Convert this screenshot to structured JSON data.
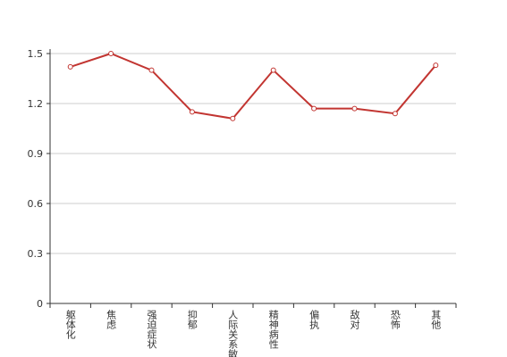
{
  "chart_data": {
    "type": "line",
    "categories": [
      "躯体化",
      "焦虑",
      "强迫症状",
      "抑郁",
      "人际关系敏",
      "精神病性",
      "偏执",
      "敌对",
      "恐怖",
      "其他"
    ],
    "values": [
      1.42,
      1.5,
      1.4,
      1.15,
      1.11,
      1.4,
      1.17,
      1.17,
      1.14,
      1.43
    ],
    "color": "#c23531",
    "ylim": [
      0,
      1.5
    ],
    "yticks": [
      0,
      0.3,
      0.6,
      0.9,
      1.2,
      1.5
    ],
    "grid": true
  }
}
